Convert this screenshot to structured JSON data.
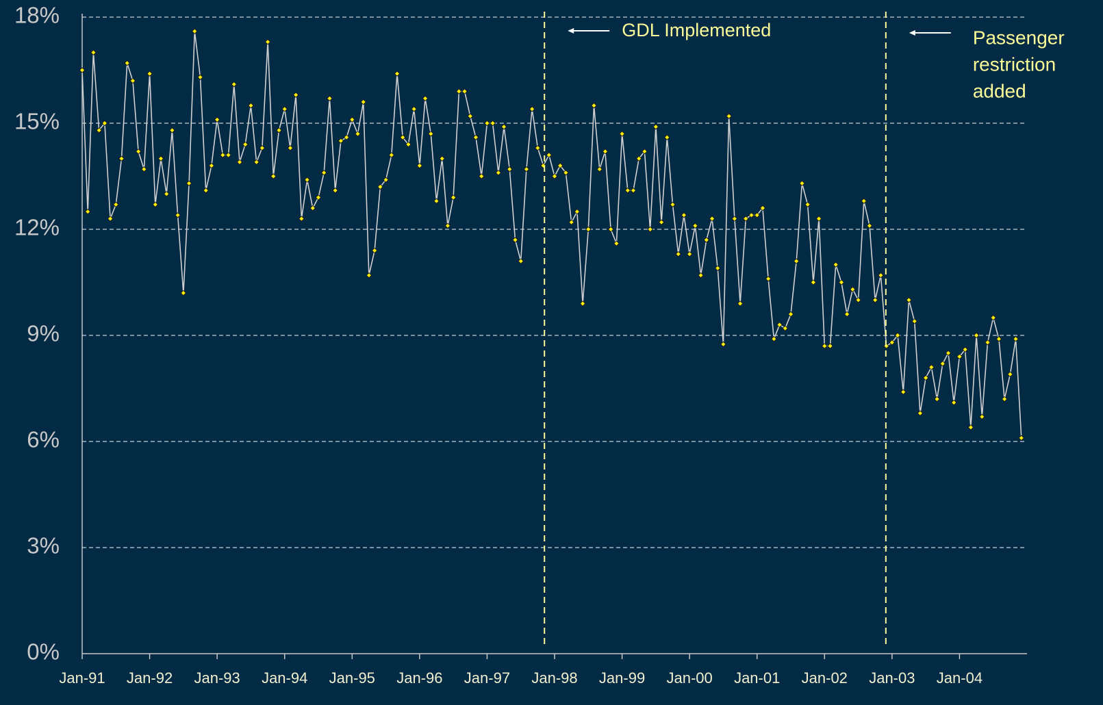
{
  "chart_data": {
    "type": "line",
    "categories": [
      "Jan-91",
      null,
      null,
      null,
      null,
      null,
      null,
      null,
      null,
      null,
      null,
      null,
      "Jan-92",
      null,
      null,
      null,
      null,
      null,
      null,
      null,
      null,
      null,
      null,
      null,
      "Jan-93",
      null,
      null,
      null,
      null,
      null,
      null,
      null,
      null,
      null,
      null,
      null,
      "Jan-94",
      null,
      null,
      null,
      null,
      null,
      null,
      null,
      null,
      null,
      null,
      null,
      "Jan-95",
      null,
      null,
      null,
      null,
      null,
      null,
      null,
      null,
      null,
      null,
      null,
      "Jan-96",
      null,
      null,
      null,
      null,
      null,
      null,
      null,
      null,
      null,
      null,
      null,
      "Jan-97",
      null,
      null,
      null,
      null,
      null,
      null,
      null,
      null,
      null,
      null,
      null,
      "Jan-98",
      null,
      null,
      null,
      null,
      null,
      null,
      null,
      null,
      null,
      null,
      null,
      "Jan-99",
      null,
      null,
      null,
      null,
      null,
      null,
      null,
      null,
      null,
      null,
      null,
      "Jan-00",
      null,
      null,
      null,
      null,
      null,
      null,
      null,
      null,
      null,
      null,
      null,
      "Jan-01",
      null,
      null,
      null,
      null,
      null,
      null,
      null,
      null,
      null,
      null,
      null,
      "Jan-02",
      null,
      null,
      null,
      null,
      null,
      null,
      null,
      null,
      null,
      null,
      null,
      "Jan-03",
      null,
      null,
      null,
      null,
      null,
      null,
      null,
      null,
      null,
      null,
      null,
      "Jan-04",
      null,
      null,
      null,
      null,
      null,
      null,
      null,
      null,
      null,
      null,
      null
    ],
    "series": [
      {
        "color": "#d0d0d0",
        "marker_color": "#ffee00",
        "values": [
          16.5,
          12.5,
          17.0,
          14.8,
          15.0,
          12.3,
          12.7,
          14.0,
          16.7,
          16.2,
          14.2,
          13.7,
          16.4,
          12.7,
          14.0,
          13.0,
          14.8,
          12.4,
          10.2,
          13.3,
          17.6,
          16.3,
          13.1,
          13.8,
          15.1,
          14.1,
          14.1,
          16.1,
          13.9,
          14.4,
          15.5,
          13.9,
          14.3,
          17.3,
          13.5,
          14.8,
          15.4,
          14.3,
          15.8,
          12.3,
          13.4,
          12.6,
          12.9,
          13.6,
          15.7,
          13.1,
          14.5,
          14.6,
          15.1,
          14.7,
          15.6,
          10.7,
          11.4,
          13.2,
          13.4,
          14.1,
          16.4,
          14.6,
          14.4,
          15.4,
          13.8,
          15.7,
          14.7,
          12.8,
          14.0,
          12.1,
          12.9,
          15.9,
          15.9,
          15.2,
          14.6,
          13.5,
          15.0,
          15.0,
          13.6,
          14.9,
          13.7,
          11.7,
          11.1,
          13.7,
          15.4,
          14.3,
          13.8,
          14.1,
          13.5,
          13.8,
          13.6,
          12.2,
          12.5,
          9.9,
          12.0,
          15.5,
          13.7,
          14.2,
          12.0,
          11.6,
          14.7,
          13.1,
          13.1,
          14.0,
          14.2,
          12.0,
          14.9,
          12.2,
          14.6,
          12.7,
          11.3,
          12.4,
          11.3,
          12.1,
          10.7,
          11.7,
          12.3,
          10.9,
          8.75,
          15.2,
          12.3,
          9.9,
          12.3,
          12.4,
          12.4,
          12.6,
          10.6,
          8.9,
          9.3,
          9.2,
          9.6,
          11.1,
          13.3,
          12.7,
          10.5,
          12.3,
          8.7,
          8.7,
          11.0,
          10.5,
          9.6,
          10.3,
          10.0,
          12.8,
          12.1,
          10.0,
          10.7,
          8.7,
          8.8,
          9.0,
          7.4,
          10.0,
          9.4,
          6.8,
          7.8,
          8.1,
          7.2,
          8.2,
          8.5,
          7.1,
          8.4,
          8.6,
          6.4,
          9.0,
          6.7,
          8.8,
          9.5,
          8.9,
          7.2,
          7.9,
          8.9,
          6.1
        ]
      }
    ],
    "ylim": [
      0,
      18
    ],
    "yticks": [
      {
        "value": 0,
        "label": "0%"
      },
      {
        "value": 3,
        "label": "3%"
      },
      {
        "value": 6,
        "label": "6%"
      },
      {
        "value": 9,
        "label": "9%"
      },
      {
        "value": 12,
        "label": "12%"
      },
      {
        "value": 15,
        "label": "15%"
      },
      {
        "value": 18,
        "label": "18%"
      }
    ],
    "grid": true,
    "annotations": [
      {
        "lines": [
          "GDL Implemented"
        ],
        "x": 82.2,
        "color": "#ffff99"
      },
      {
        "lines": [
          "Passenger",
          "restriction",
          "added"
        ],
        "x": 142.9,
        "color": "#ffff99"
      }
    ]
  }
}
